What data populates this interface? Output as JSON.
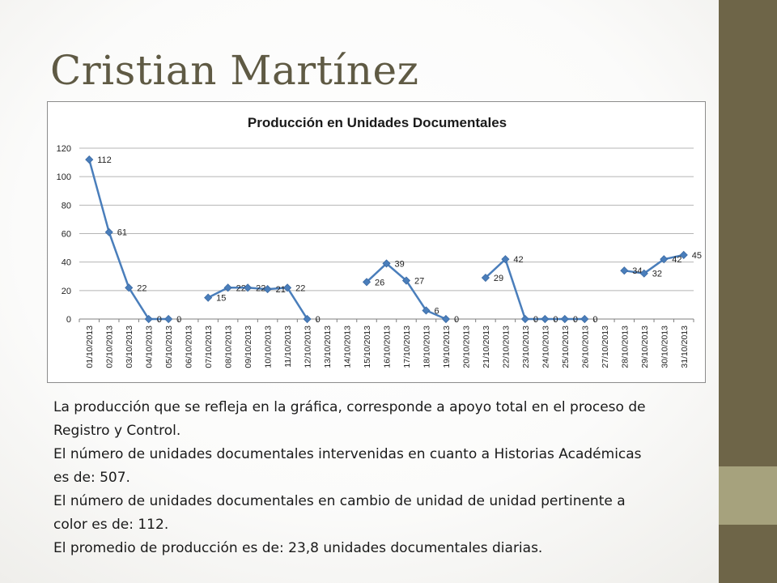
{
  "slide": {
    "title": "Cristian Martínez",
    "paragraphs": [
      "La producción que se refleja en la gráfica, corresponde a apoyo total en el proceso de",
      "Registro y Control.",
      "El número de unidades documentales intervenidas en cuanto a Historias Académicas",
      "es de: 507.",
      "El número de unidades documentales en cambio de unidad de unidad pertinente a",
      "color es de: 112.",
      "El promedio de producción es de: 23,8  unidades documentales diarias."
    ],
    "accent_colors": {
      "dark_bar": "#6e6548",
      "light_bar": "#a6a27d",
      "series": "#4a7ebb"
    }
  },
  "chart_data": {
    "type": "line",
    "title": "Producción en Unidades Documentales",
    "xlabel": "",
    "ylabel": "",
    "ylim": [
      0,
      120
    ],
    "yticks": [
      0,
      20,
      40,
      60,
      80,
      100,
      120
    ],
    "grid": true,
    "legend": "none",
    "categories": [
      "01/10/2013",
      "02/10/2013",
      "03/10/2013",
      "04/10/2013",
      "05/10/2013",
      "06/10/2013",
      "07/10/2013",
      "08/10/2013",
      "09/10/2013",
      "10/10/2013",
      "11/10/2013",
      "12/10/2013",
      "13/10/2013",
      "14/10/2013",
      "15/10/2013",
      "16/10/2013",
      "17/10/2013",
      "18/10/2013",
      "19/10/2013",
      "20/10/2013",
      "21/10/2013",
      "22/10/2013",
      "23/10/2013",
      "24/10/2013",
      "25/10/2013",
      "26/10/2013",
      "27/10/2013",
      "28/10/2013",
      "29/10/2013",
      "30/10/2013",
      "31/10/2013"
    ],
    "series": [
      {
        "values": [
          112,
          61,
          22,
          0,
          0,
          null,
          15,
          22,
          22,
          21,
          22,
          0,
          null,
          null,
          26,
          39,
          27,
          6,
          0,
          null,
          29,
          42,
          0,
          0,
          0,
          0,
          null,
          34,
          32,
          42,
          45
        ]
      }
    ]
  }
}
